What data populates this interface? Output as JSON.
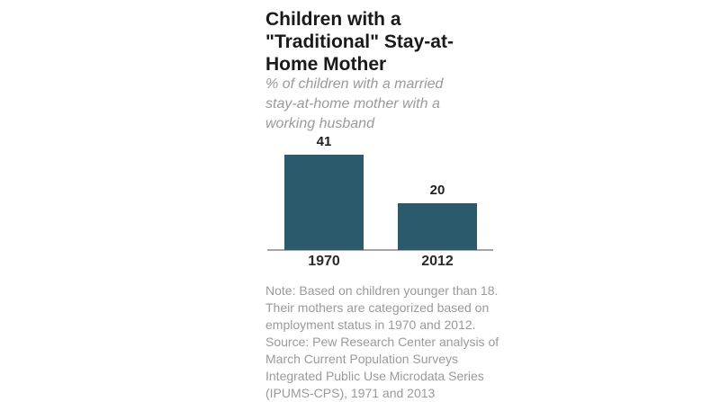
{
  "page": {
    "background_color": "#ffffff"
  },
  "chart_data": {
    "type": "bar",
    "title": "Children with a \"Traditional\" Stay-at-Home Mother",
    "title_display": "Children with a\n\"Traditional\" Stay-at-\nHome Mother",
    "subtitle": "% of children with a married stay-at-home mother with a working husband",
    "subtitle_display": "% of children with a married\nstay-at-home mother with a\nworking husband",
    "categories": [
      "1970",
      "2012"
    ],
    "values": [
      41,
      20
    ],
    "value_labels": [
      "41",
      "20"
    ],
    "ylim": [
      0,
      45
    ],
    "grid": false,
    "legend": "none",
    "bar_color": "#2a5a6c",
    "axis_line_color": "#a5a5a5",
    "note": "Note: Based on children younger than 18.\nTheir mothers are categorized based on\nemployment status in 1970 and 2012.",
    "source": "Source: Pew Research Center analysis of\nMarch Current Population Surveys\nIntegrated Public Use Microdata Series\n(IPUMS-CPS), 1971 and 2013"
  }
}
